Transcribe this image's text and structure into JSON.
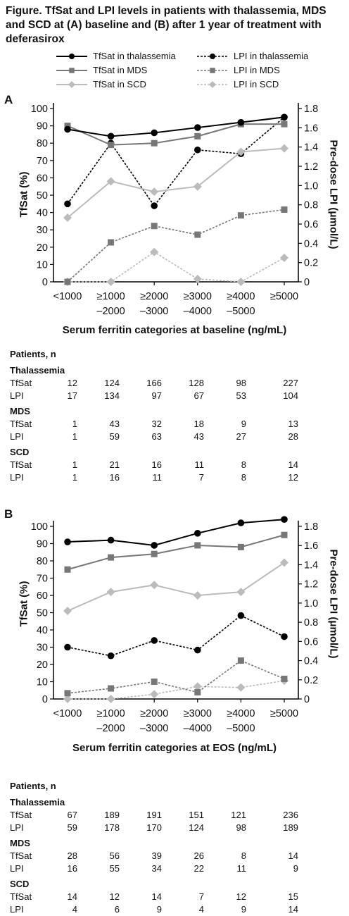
{
  "title": "Figure. TfSat and LPI levels in patients with thalassemia, MDS and SCD at (A) baseline and (B) after 1 year of treatment with deferasirox",
  "legend": [
    {
      "label": "TfSat in thalassemia",
      "color": "#000000",
      "dashed": false,
      "marker": "circle"
    },
    {
      "label": "LPI in thalassemia",
      "color": "#000000",
      "dashed": true,
      "marker": "circle"
    },
    {
      "label": "TfSat in MDS",
      "color": "#777777",
      "dashed": false,
      "marker": "square"
    },
    {
      "label": "LPI in MDS",
      "color": "#777777",
      "dashed": true,
      "marker": "square"
    },
    {
      "label": "TfSat in SCD",
      "color": "#bbbbbb",
      "dashed": false,
      "marker": "diamond"
    },
    {
      "label": "LPI in SCD",
      "color": "#bbbbbb",
      "dashed": true,
      "marker": "diamond"
    }
  ],
  "chart_data": [
    {
      "type": "line",
      "panel": "A",
      "xlabel": "Serum ferritin categories at baseline (ng/mL)",
      "ylabel": "TfSat (%)",
      "y2label": "Pre-dose LPI (μmol/L)",
      "categories": [
        [
          "<1000"
        ],
        [
          "≥1000",
          "–2000"
        ],
        [
          "≥2000",
          "–3000"
        ],
        [
          "≥3000",
          "–4000"
        ],
        [
          "≥4000",
          "–5000"
        ],
        [
          "≥5000"
        ]
      ],
      "ylim": [
        0,
        100
      ],
      "yticks": [
        "0",
        "10",
        "20",
        "30",
        "40",
        "50",
        "60",
        "70",
        "80",
        "90",
        "100"
      ],
      "y2lim": [
        0,
        1.8
      ],
      "y2ticks": [
        "0",
        "0.2",
        "0.4",
        "0.6",
        "0.8",
        "1.0",
        "1.2",
        "1.4",
        "1.6",
        "1.8"
      ],
      "series": [
        {
          "name": "TfSat in thalassemia",
          "axis": "left",
          "values": [
            88,
            84,
            86,
            89,
            92,
            95
          ],
          "color": "#000000",
          "dashed": false,
          "marker": "circle"
        },
        {
          "name": "TfSat in MDS",
          "axis": "left",
          "values": [
            90,
            79,
            80,
            84,
            91,
            91
          ],
          "color": "#777777",
          "dashed": false,
          "marker": "square"
        },
        {
          "name": "TfSat in SCD",
          "axis": "left",
          "values": [
            37,
            58,
            52,
            55,
            75,
            77
          ],
          "color": "#bbbbbb",
          "dashed": false,
          "marker": "diamond"
        },
        {
          "name": "LPI in thalassemia",
          "axis": "right",
          "values": [
            0.81,
            1.44,
            0.79,
            1.37,
            1.33,
            1.71
          ],
          "color": "#000000",
          "dashed": true,
          "marker": "circle"
        },
        {
          "name": "LPI in MDS",
          "axis": "right",
          "values": [
            0.0,
            0.41,
            0.58,
            0.49,
            0.69,
            0.75
          ],
          "color": "#777777",
          "dashed": true,
          "marker": "square"
        },
        {
          "name": "LPI in SCD",
          "axis": "right",
          "values": [
            0.0,
            0.0,
            0.31,
            0.03,
            0.0,
            0.25
          ],
          "color": "#bbbbbb",
          "dashed": true,
          "marker": "diamond"
        }
      ]
    },
    {
      "type": "line",
      "panel": "B",
      "xlabel": "Serum ferritin categories at EOS (ng/mL)",
      "ylabel": "TfSat (%)",
      "y2label": "Pre-dose LPI (μmol/L)",
      "categories": [
        [
          "<1000"
        ],
        [
          "≥1000",
          "–2000"
        ],
        [
          "≥2000",
          "–3000"
        ],
        [
          "≥3000",
          "–4000"
        ],
        [
          "≥4000",
          "–5000"
        ],
        [
          "≥5000"
        ]
      ],
      "ylim": [
        0,
        100
      ],
      "yticks": [
        "0",
        "10",
        "20",
        "30",
        "40",
        "50",
        "60",
        "70",
        "80",
        "90",
        "100"
      ],
      "y2lim": [
        0,
        1.8
      ],
      "y2ticks": [
        "0",
        "0.2",
        "0.4",
        "0.6",
        "0.8",
        "1.0",
        "1.2",
        "1.4",
        "1.6",
        "1.8"
      ],
      "series": [
        {
          "name": "TfSat in thalassemia",
          "axis": "left",
          "values": [
            91,
            92,
            89,
            96,
            102,
            104
          ],
          "color": "#000000",
          "dashed": false,
          "marker": "circle"
        },
        {
          "name": "TfSat in MDS",
          "axis": "left",
          "values": [
            75,
            82,
            84,
            89,
            88,
            95
          ],
          "color": "#777777",
          "dashed": false,
          "marker": "square"
        },
        {
          "name": "TfSat in SCD",
          "axis": "left",
          "values": [
            51,
            62,
            66,
            60,
            62,
            79
          ],
          "color": "#bbbbbb",
          "dashed": false,
          "marker": "diamond"
        },
        {
          "name": "LPI in thalassemia",
          "axis": "right",
          "values": [
            0.54,
            0.45,
            0.61,
            0.51,
            0.87,
            0.65
          ],
          "color": "#000000",
          "dashed": true,
          "marker": "circle"
        },
        {
          "name": "LPI in MDS",
          "axis": "right",
          "values": [
            0.06,
            0.11,
            0.18,
            0.07,
            0.4,
            0.21
          ],
          "color": "#777777",
          "dashed": true,
          "marker": "square"
        },
        {
          "name": "LPI in SCD",
          "axis": "right",
          "values": [
            0.0,
            0.0,
            0.05,
            0.13,
            0.12,
            0.19
          ],
          "color": "#bbbbbb",
          "dashed": true,
          "marker": "diamond"
        }
      ]
    }
  ],
  "tables": [
    {
      "header": "Patients, n",
      "groups": [
        {
          "name": "Thalassemia",
          "rows": [
            {
              "label": "TfSat",
              "values": [
                "12",
                "124",
                "166",
                "128",
                "98",
                "227"
              ]
            },
            {
              "label": "LPI",
              "values": [
                "17",
                "134",
                "97",
                "67",
                "53",
                "104"
              ]
            }
          ]
        },
        {
          "name": "MDS",
          "rows": [
            {
              "label": "TfSat",
              "values": [
                "1",
                "43",
                "32",
                "18",
                "9",
                "13"
              ]
            },
            {
              "label": "LPI",
              "values": [
                "1",
                "59",
                "63",
                "43",
                "27",
                "28"
              ]
            }
          ]
        },
        {
          "name": "SCD",
          "rows": [
            {
              "label": "TfSat",
              "values": [
                "1",
                "21",
                "16",
                "11",
                "8",
                "14"
              ]
            },
            {
              "label": "LPI",
              "values": [
                "1",
                "16",
                "11",
                "7",
                "8",
                "12"
              ]
            }
          ]
        }
      ]
    },
    {
      "header": "Patients, n",
      "groups": [
        {
          "name": "Thalassemia",
          "rows": [
            {
              "label": "TfSat",
              "values": [
                "67",
                "189",
                "191",
                "151",
                "121",
                "236"
              ]
            },
            {
              "label": "LPI",
              "values": [
                "59",
                "178",
                "170",
                "124",
                "98",
                "189"
              ]
            }
          ]
        },
        {
          "name": "MDS",
          "rows": [
            {
              "label": "TfSat",
              "values": [
                "28",
                "56",
                "39",
                "26",
                "8",
                "14"
              ]
            },
            {
              "label": "LPI",
              "values": [
                "16",
                "55",
                "34",
                "22",
                "11",
                "9"
              ]
            }
          ]
        },
        {
          "name": "SCD",
          "rows": [
            {
              "label": "TfSat",
              "values": [
                "14",
                "12",
                "14",
                "7",
                "12",
                "15"
              ]
            },
            {
              "label": "LPI",
              "values": [
                "4",
                "6",
                "9",
                "4",
                "9",
                "14"
              ]
            }
          ]
        }
      ]
    }
  ]
}
